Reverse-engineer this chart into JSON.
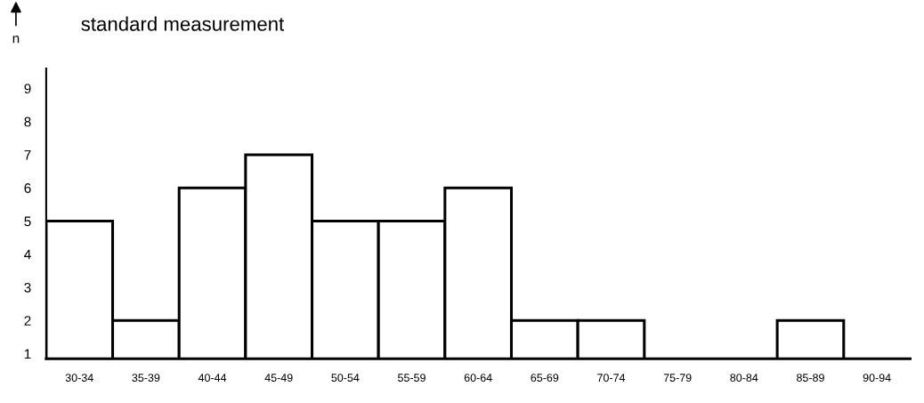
{
  "chart_data": {
    "type": "bar",
    "title": "standard measurement",
    "ylabel": "n",
    "categories": [
      "30-34",
      "35-39",
      "40-44",
      "45-49",
      "50-54",
      "55-59",
      "60-64",
      "65-69",
      "70-74",
      "75-79",
      "80-84",
      "85-89",
      "90-94"
    ],
    "values": [
      5,
      2,
      6,
      7,
      5,
      5,
      6,
      2,
      2,
      null,
      null,
      2,
      null
    ],
    "color": "#ffffff",
    "ylim": [
      0.85,
      9.6
    ],
    "yticks": [
      1,
      2,
      3,
      4,
      5,
      6,
      7,
      8,
      9
    ],
    "grid": false,
    "legend": false
  }
}
